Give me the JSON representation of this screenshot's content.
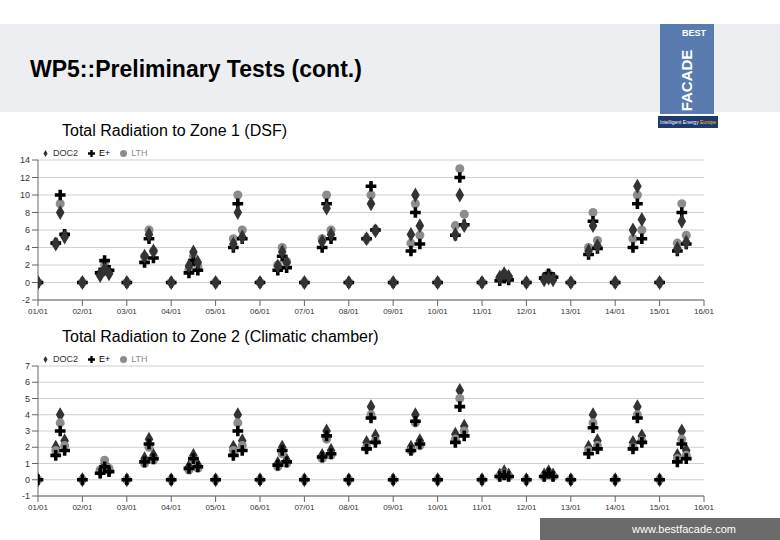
{
  "slide": {
    "title": "WP5::Preliminary Tests (cont.)",
    "logo": {
      "top": "BEST",
      "main": "FACADE",
      "program": "Intelligent Energy",
      "region": "Europe"
    },
    "footer": "www.bestfacade.com"
  },
  "chart_data": [
    {
      "type": "scatter",
      "title": "Total Radiation to Zone 1 (DSF)",
      "x": [
        0,
        0.4,
        0.5,
        0.6,
        1,
        1.4,
        1.5,
        1.6,
        2,
        2.4,
        2.5,
        2.6,
        3,
        3.4,
        3.5,
        3.6,
        4,
        4.4,
        4.5,
        4.6,
        5,
        5.4,
        5.5,
        5.6,
        6,
        6.4,
        6.5,
        6.6,
        7,
        7.4,
        7.5,
        7.6,
        8,
        8.4,
        8.5,
        8.6,
        9,
        9.4,
        9.5,
        9.6,
        10,
        10.4,
        10.5,
        10.6,
        11,
        11.4,
        11.5,
        11.6,
        12,
        12.4,
        12.5,
        12.6,
        13,
        13.4,
        13.5,
        13.6,
        14,
        14.4,
        14.5,
        14.6
      ],
      "xlim": [
        0,
        15
      ],
      "xticks": [
        {
          "value": 0,
          "label": "01/01"
        },
        {
          "value": 1,
          "label": "02/01"
        },
        {
          "value": 2,
          "label": "03/01"
        },
        {
          "value": 3,
          "label": "04/01"
        },
        {
          "value": 4,
          "label": "05/01"
        },
        {
          "value": 5,
          "label": "06/01"
        },
        {
          "value": 6,
          "label": "07/01"
        },
        {
          "value": 7,
          "label": "08/01"
        },
        {
          "value": 8,
          "label": "09/01"
        },
        {
          "value": 9,
          "label": "10/01"
        },
        {
          "value": 10,
          "label": "11/01"
        },
        {
          "value": 11,
          "label": "12/01"
        },
        {
          "value": 12,
          "label": "13/01"
        },
        {
          "value": 13,
          "label": "14/01"
        },
        {
          "value": 14,
          "label": "15/01"
        },
        {
          "value": 15,
          "label": "16/01"
        }
      ],
      "ylim": [
        -2,
        14
      ],
      "yticks": [
        -2,
        0,
        2,
        4,
        6,
        8,
        10,
        12,
        14
      ],
      "grid": true,
      "legend": "top-left",
      "series": [
        {
          "name": "LTH",
          "color": "#8c8c8c",
          "marker": "circle",
          "values": [
            0,
            4.5,
            9,
            5.4,
            0,
            1,
            2,
            1.2,
            0,
            3,
            6,
            3.6,
            0,
            1.5,
            3,
            1.8,
            0,
            5,
            10,
            6,
            0,
            2,
            4,
            2.4,
            0,
            5,
            10,
            6,
            0,
            5,
            10,
            6,
            0,
            4.5,
            9,
            5.4,
            0,
            6.5,
            13,
            7.8,
            0,
            0.5,
            1,
            0.6,
            0,
            0.5,
            1,
            0.6,
            0,
            4,
            8,
            4.8,
            0,
            5,
            10,
            6,
            0,
            4.5,
            9,
            5.4
          ]
        },
        {
          "name": "E+",
          "color": "#000000",
          "marker": "cross",
          "values": [
            0,
            4.5,
            10,
            5.5,
            0,
            1.1,
            2.5,
            1.4,
            0,
            2.3,
            5,
            2.8,
            0,
            1.1,
            2.5,
            1.4,
            0,
            4,
            9,
            5,
            0,
            1.4,
            3,
            1.7,
            0,
            4,
            9,
            5,
            0,
            5,
            11,
            6,
            0,
            3.6,
            8,
            4.4,
            0,
            5.4,
            12,
            6.6,
            0,
            0.2,
            0.5,
            0.3,
            0,
            0.5,
            1,
            0.6,
            0,
            3.2,
            7,
            3.9,
            0,
            4,
            9,
            5,
            0,
            3.6,
            8,
            4.4
          ]
        },
        {
          "name": "DOC2",
          "color": "#333333",
          "marker": "diamond",
          "values": [
            0,
            4.4,
            8,
            5.2,
            0,
            0.8,
            1.5,
            1,
            0,
            3,
            5.5,
            3.6,
            0,
            1.9,
            3.5,
            2.3,
            0,
            4.4,
            8,
            5.2,
            0,
            1.9,
            3.5,
            2.3,
            0,
            4.7,
            8.5,
            5.5,
            0,
            5,
            9,
            5.9,
            0,
            5.5,
            10,
            6.5,
            0,
            5.5,
            10,
            6.5,
            0,
            0.6,
            1,
            0.7,
            0,
            0.3,
            0.5,
            0.3,
            0,
            3.6,
            6.5,
            4.2,
            0,
            6,
            11,
            7.2,
            0,
            3.9,
            7,
            4.6
          ]
        }
      ]
    },
    {
      "type": "scatter",
      "title": "Total Radiation to Zone 2 (Climatic chamber)",
      "x": [
        0,
        0.4,
        0.5,
        0.6,
        1,
        1.4,
        1.5,
        1.6,
        2,
        2.4,
        2.5,
        2.6,
        3,
        3.4,
        3.5,
        3.6,
        4,
        4.4,
        4.5,
        4.6,
        5,
        5.4,
        5.5,
        5.6,
        6,
        6.4,
        6.5,
        6.6,
        7,
        7.4,
        7.5,
        7.6,
        8,
        8.4,
        8.5,
        8.6,
        9,
        9.4,
        9.5,
        9.6,
        10,
        10.4,
        10.5,
        10.6,
        11,
        11.4,
        11.5,
        11.6,
        12,
        12.4,
        12.5,
        12.6,
        13,
        13.4,
        13.5,
        13.6,
        14,
        14.4,
        14.5,
        14.6
      ],
      "xlim": [
        0,
        15
      ],
      "xticks": [
        {
          "value": 0,
          "label": "01/01"
        },
        {
          "value": 1,
          "label": "02/01"
        },
        {
          "value": 2,
          "label": "03/01"
        },
        {
          "value": 3,
          "label": "04/01"
        },
        {
          "value": 4,
          "label": "05/01"
        },
        {
          "value": 5,
          "label": "06/01"
        },
        {
          "value": 6,
          "label": "07/01"
        },
        {
          "value": 7,
          "label": "08/01"
        },
        {
          "value": 8,
          "label": "09/01"
        },
        {
          "value": 9,
          "label": "10/01"
        },
        {
          "value": 10,
          "label": "11/01"
        },
        {
          "value": 11,
          "label": "12/01"
        },
        {
          "value": 12,
          "label": "13/01"
        },
        {
          "value": 13,
          "label": "14/01"
        },
        {
          "value": 14,
          "label": "15/01"
        },
        {
          "value": 15,
          "label": "16/01"
        }
      ],
      "ylim": [
        -1,
        7
      ],
      "yticks": [
        -1,
        0,
        1,
        2,
        3,
        4,
        5,
        6,
        7
      ],
      "grid": true,
      "legend": "top-left",
      "series": [
        {
          "name": "DOC2",
          "color": "#333333",
          "marker": "diamond",
          "values": [
            0,
            2,
            4,
            2.4,
            0,
            0.5,
            1,
            0.6,
            0,
            1.3,
            2.5,
            1.5,
            0,
            0.8,
            1.5,
            0.9,
            0,
            2,
            4,
            2.4,
            0,
            1,
            2,
            1.2,
            0,
            1.5,
            3,
            1.8,
            0,
            2.3,
            4.5,
            2.7,
            0,
            2,
            4,
            2.4,
            0,
            2.8,
            5.5,
            3.3,
            0,
            0.3,
            0.5,
            0.3,
            0,
            0.3,
            0.5,
            0.3,
            0,
            2,
            4,
            2.4,
            0,
            2.3,
            4.5,
            2.7,
            0,
            1.5,
            3,
            1.8
          ]
        },
        {
          "name": "LTH",
          "color": "#8c8c8c",
          "marker": "circle",
          "values": [
            0,
            1.8,
            3.5,
            2.1,
            0,
            0.6,
            1.2,
            0.7,
            0,
            1,
            2,
            1.2,
            0,
            0.6,
            1.2,
            0.7,
            0,
            1.8,
            3.5,
            2.1,
            0,
            0.8,
            1.6,
            1,
            0,
            1.3,
            2.5,
            1.5,
            0,
            2,
            4,
            2.4,
            0,
            1.8,
            3.5,
            2.1,
            0,
            2.5,
            5,
            3,
            0,
            0.2,
            0.4,
            0.2,
            0,
            0.2,
            0.3,
            0.2,
            0,
            1.8,
            3.5,
            2.1,
            0,
            2,
            4,
            2.4,
            0,
            1.3,
            2.5,
            1.5
          ]
        },
        {
          "name": "E+",
          "color": "#000000",
          "marker": "cross",
          "values": [
            0,
            1.5,
            3,
            1.8,
            0,
            0.4,
            0.8,
            0.5,
            0,
            1.1,
            2.2,
            1.3,
            0,
            0.7,
            1.3,
            0.8,
            0,
            1.5,
            3,
            1.8,
            0,
            0.9,
            1.8,
            1.1,
            0,
            1.4,
            2.7,
            1.6,
            0,
            1.9,
            3.8,
            2.3,
            0,
            1.8,
            3.6,
            2.2,
            0,
            2.3,
            4.5,
            2.7,
            0,
            0.2,
            0.3,
            0.2,
            0,
            0.2,
            0.4,
            0.2,
            0,
            1.6,
            3.2,
            1.9,
            0,
            1.9,
            3.8,
            2.3,
            0,
            1.1,
            2.2,
            1.3
          ]
        }
      ]
    }
  ]
}
